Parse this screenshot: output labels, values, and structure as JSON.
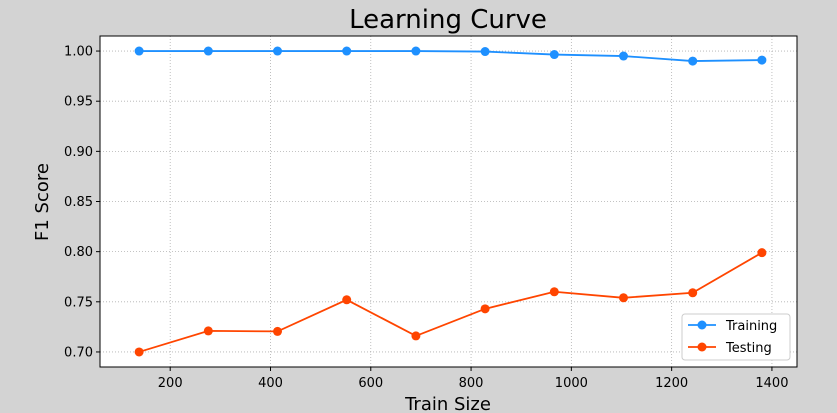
{
  "chart_data": {
    "type": "line",
    "title": "Learning Curve",
    "xlabel": "Train Size",
    "ylabel": "F1 Score",
    "x": [
      138,
      276,
      414,
      552,
      690,
      828,
      966,
      1104,
      1242,
      1380
    ],
    "xlim": [
      60,
      1450
    ],
    "ylim": [
      0.685,
      1.015
    ],
    "xticks": [
      200,
      400,
      600,
      800,
      1000,
      1200,
      1400
    ],
    "xtick_labels": [
      "200",
      "400",
      "600",
      "800",
      "1000",
      "1200",
      "1400"
    ],
    "yticks": [
      0.7,
      0.75,
      0.8,
      0.85,
      0.9,
      0.95,
      1.0
    ],
    "ytick_labels": [
      "0.70",
      "0.75",
      "0.80",
      "0.85",
      "0.90",
      "0.95",
      "1.00"
    ],
    "grid": true,
    "legend_position": "bottom-right",
    "series": [
      {
        "name": "Training",
        "color": "#1e90ff",
        "values": [
          1.0,
          1.0,
          1.0,
          1.0,
          1.0,
          0.9995,
          0.9965,
          0.995,
          0.99,
          0.991
        ]
      },
      {
        "name": "Testing",
        "color": "#ff4500",
        "values": [
          0.7,
          0.721,
          0.7205,
          0.752,
          0.716,
          0.743,
          0.76,
          0.754,
          0.759,
          0.799
        ]
      }
    ]
  }
}
